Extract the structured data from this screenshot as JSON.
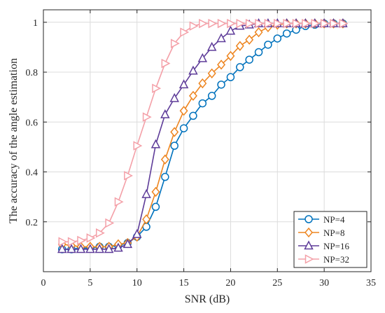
{
  "chart_data": {
    "type": "line",
    "title": "",
    "xlabel": "SNR (dB)",
    "ylabel": "The accuracy of the angle estimation",
    "xlim": [
      0,
      35
    ],
    "ylim": [
      0,
      1.05
    ],
    "xticks": [
      0,
      5,
      10,
      15,
      20,
      25,
      30,
      35
    ],
    "yticks": [
      0.2,
      0.4,
      0.6,
      0.8,
      1
    ],
    "grid": true,
    "legend_position": "bottom-right",
    "x": [
      2,
      3,
      4,
      5,
      6,
      7,
      8,
      9,
      10,
      11,
      12,
      13,
      14,
      15,
      16,
      17,
      18,
      19,
      20,
      21,
      22,
      23,
      24,
      25,
      26,
      27,
      28,
      29,
      30,
      31,
      32
    ],
    "series": [
      {
        "name": "NP=4",
        "color": "#0072BD",
        "marker": "circle",
        "values": [
          0.09,
          0.09,
          0.095,
          0.095,
          0.1,
          0.1,
          0.105,
          0.115,
          0.14,
          0.18,
          0.26,
          0.38,
          0.505,
          0.575,
          0.625,
          0.675,
          0.705,
          0.75,
          0.78,
          0.82,
          0.85,
          0.88,
          0.91,
          0.935,
          0.955,
          0.97,
          0.985,
          0.99,
          0.995,
          0.995,
          0.995
        ]
      },
      {
        "name": "NP=8",
        "color": "#ED8520",
        "marker": "diamond",
        "values": [
          0.11,
          0.105,
          0.1,
          0.1,
          0.1,
          0.1,
          0.11,
          0.115,
          0.14,
          0.21,
          0.32,
          0.45,
          0.56,
          0.645,
          0.705,
          0.755,
          0.795,
          0.83,
          0.865,
          0.905,
          0.93,
          0.96,
          0.98,
          0.99,
          0.995,
          0.995,
          0.995,
          0.995,
          0.995,
          0.995,
          0.995
        ]
      },
      {
        "name": "NP=16",
        "color": "#5E3C99",
        "marker": "triangle-up",
        "values": [
          0.09,
          0.09,
          0.09,
          0.09,
          0.09,
          0.09,
          0.095,
          0.11,
          0.15,
          0.31,
          0.51,
          0.63,
          0.695,
          0.75,
          0.805,
          0.855,
          0.9,
          0.935,
          0.965,
          0.985,
          0.99,
          0.995,
          0.995,
          0.995,
          0.995,
          0.995,
          0.995,
          0.995,
          0.995,
          0.995,
          0.995
        ]
      },
      {
        "name": "NP=32",
        "color": "#F4A0A8",
        "marker": "triangle-right",
        "values": [
          0.12,
          0.12,
          0.125,
          0.135,
          0.155,
          0.195,
          0.28,
          0.385,
          0.505,
          0.62,
          0.735,
          0.835,
          0.915,
          0.96,
          0.985,
          0.995,
          0.995,
          0.995,
          0.995,
          0.995,
          0.995,
          0.995,
          0.995,
          0.995,
          0.995,
          0.995,
          0.995,
          0.995,
          0.995,
          0.995,
          0.995
        ]
      }
    ]
  }
}
